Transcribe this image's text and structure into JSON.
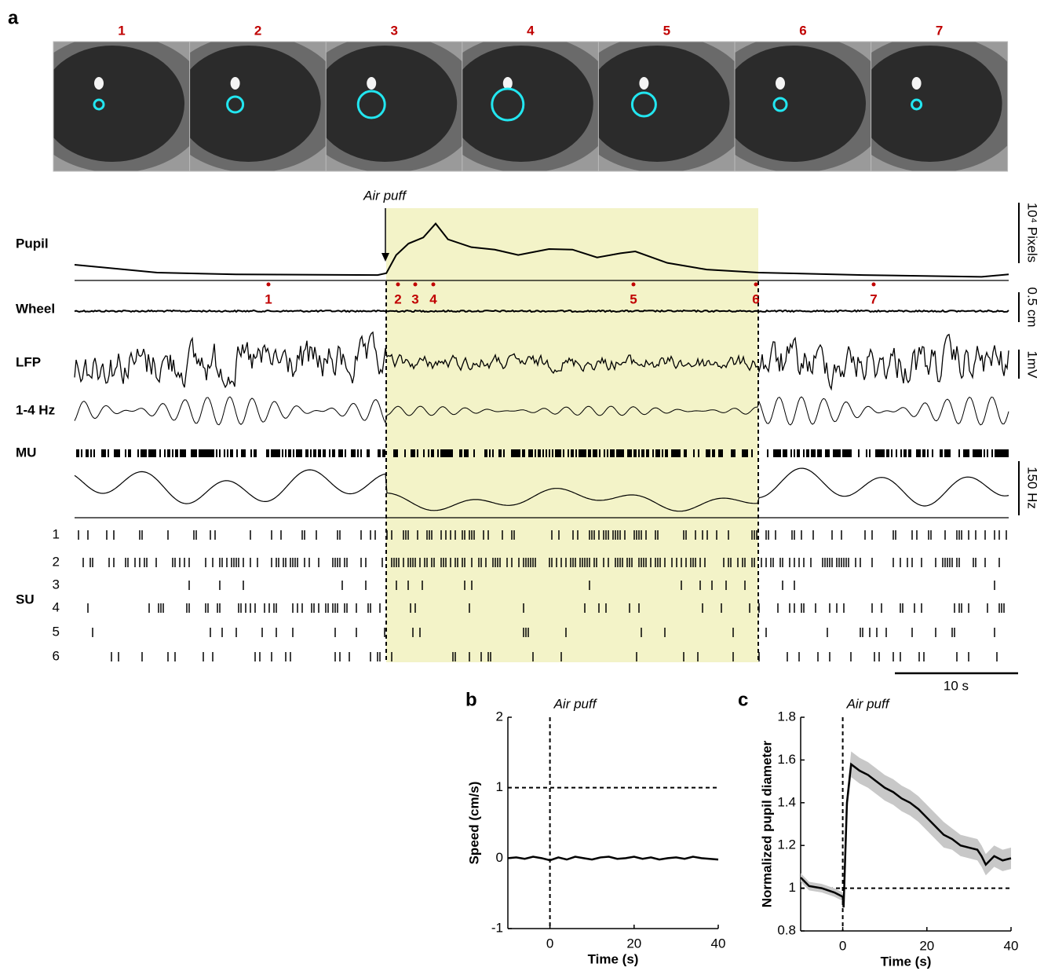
{
  "panel_a": {
    "letter": "a",
    "frames": [
      "1",
      "2",
      "3",
      "4",
      "5",
      "6",
      "7"
    ],
    "air_puff": "Air puff",
    "rows": [
      "Pupil",
      "Wheel",
      "LFP",
      "1-4 Hz",
      "MU"
    ],
    "su_label": "SU",
    "su_units": [
      "1",
      "2",
      "3",
      "4",
      "5",
      "6"
    ],
    "markers": [
      "1",
      "2",
      "3",
      "4",
      "5",
      "6",
      "7"
    ],
    "scale_labels": [
      "10⁴ Pixels",
      "0.5 cm",
      "1mV",
      "150 Hz"
    ],
    "time_scale": "10 s"
  },
  "chart_data": [
    {
      "type": "line",
      "x": [
        0,
        6.7,
        13.1,
        24.6,
        25.3,
        26.1,
        27.1,
        28.3,
        29.3,
        30.3,
        32.2,
        34.1,
        36,
        38.5,
        40.4,
        42.4,
        44.3,
        45.5,
        48.1,
        51.3,
        55.5,
        64,
        73.6,
        75.8
      ],
      "values": [
        0.26,
        0.13,
        0.1,
        0.09,
        0.12,
        0.42,
        0.61,
        0.71,
        0.94,
        0.68,
        0.55,
        0.51,
        0.42,
        0.52,
        0.51,
        0.38,
        0.45,
        0.48,
        0.29,
        0.18,
        0.13,
        0.09,
        0.06,
        0.1
      ],
      "xlim": [
        0,
        75.8
      ],
      "ylim": [
        0,
        1
      ],
      "color": "#000000"
    },
    {
      "type": "line",
      "panel": "b",
      "title": "Air puff",
      "x_label": "Time (s)",
      "y_label": "Speed (cm/s)",
      "x": [
        -10,
        -8,
        -6,
        -4,
        -2,
        0,
        2,
        4,
        6,
        8,
        10,
        12,
        14,
        16,
        18,
        20,
        22,
        24,
        26,
        28,
        30,
        32,
        34,
        36,
        38,
        40
      ],
      "values": [
        0,
        0.01,
        -0.01,
        0.02,
        0,
        -0.03,
        0.01,
        -0.02,
        0.02,
        0,
        -0.02,
        0.01,
        0.02,
        -0.01,
        0,
        0.02,
        -0.01,
        0.01,
        -0.02,
        0,
        0.01,
        -0.01,
        0.02,
        0,
        -0.01,
        -0.02
      ],
      "xlim": [
        -10,
        40
      ],
      "ylim": [
        -1,
        2
      ],
      "xticks": [
        0,
        20,
        40
      ],
      "yticks": [
        -1,
        0,
        1,
        2
      ],
      "reference_y": 1,
      "color": "#000000"
    },
    {
      "type": "line",
      "panel": "c",
      "title": "Air puff",
      "x_label": "Time (s)",
      "y_label": "Normalized pupil diameter",
      "x": [
        -10,
        -8,
        -5,
        -2,
        0,
        0.2,
        1,
        2,
        4,
        6,
        8,
        10,
        12,
        14,
        16,
        18,
        20,
        22,
        24,
        26,
        28,
        30,
        32,
        33,
        34,
        36,
        38,
        40
      ],
      "values": [
        1.05,
        1.01,
        1.0,
        0.98,
        0.96,
        0.91,
        1.4,
        1.58,
        1.55,
        1.53,
        1.5,
        1.47,
        1.45,
        1.42,
        1.4,
        1.37,
        1.33,
        1.29,
        1.25,
        1.23,
        1.2,
        1.19,
        1.18,
        1.15,
        1.11,
        1.15,
        1.13,
        1.14
      ],
      "error": [
        0.02,
        0.02,
        0.02,
        0.02,
        0.02,
        0.02,
        0.05,
        0.06,
        0.06,
        0.06,
        0.06,
        0.06,
        0.06,
        0.06,
        0.06,
        0.06,
        0.06,
        0.06,
        0.06,
        0.05,
        0.05,
        0.05,
        0.05,
        0.05,
        0.05,
        0.05,
        0.05,
        0.05
      ],
      "xlim": [
        -10,
        40
      ],
      "ylim": [
        0.8,
        1.8
      ],
      "xticks": [
        0,
        20,
        40
      ],
      "yticks": [
        0.8,
        1,
        1.2,
        1.4,
        1.6,
        1.8
      ],
      "reference_y": 1,
      "color": "#000000",
      "error_color": "#c8c8c8"
    }
  ]
}
